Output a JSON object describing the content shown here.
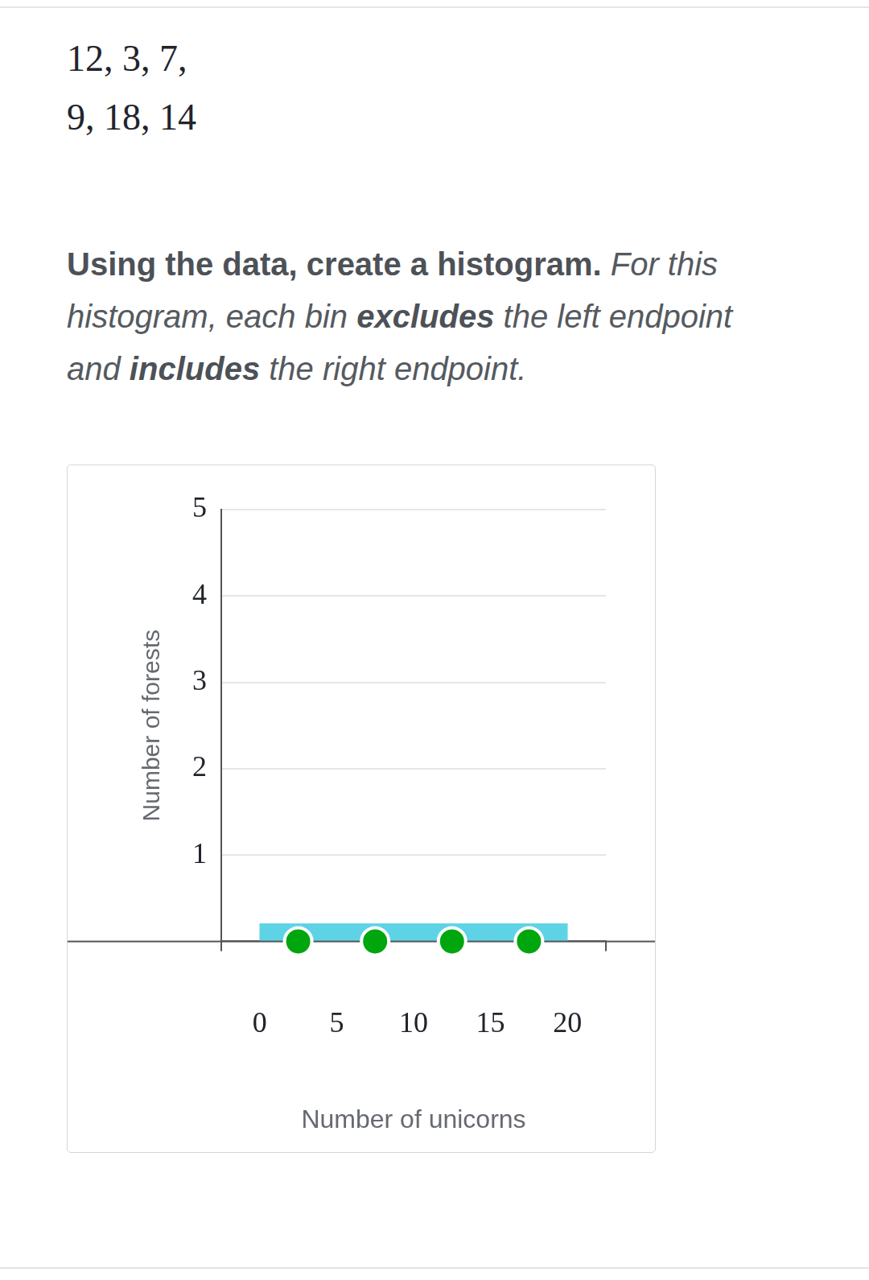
{
  "document": {
    "data_lines": [
      "12, 3, 7,",
      "9, 18, 14"
    ],
    "instruction": [
      {
        "text": "Using the data, create a histogram.",
        "style": "bold"
      },
      {
        "text": " For this histogram, each bin ",
        "style": "italic"
      },
      {
        "text": "excludes",
        "style": "bold-italic"
      },
      {
        "text": " the left endpoint and ",
        "style": "italic"
      },
      {
        "text": "includes",
        "style": "bold-italic"
      },
      {
        "text": " the right endpoint.",
        "style": "italic"
      }
    ]
  },
  "chart_data": {
    "type": "histogram",
    "bins": [
      0,
      5,
      10,
      15,
      20
    ],
    "values": [
      0,
      0,
      0,
      0
    ],
    "xlabel": "Number of unicorns",
    "ylabel": "Number of forests",
    "xlim": [
      -2.5,
      22.5
    ],
    "xticks": [
      0,
      5,
      10,
      15,
      20
    ],
    "ylim": [
      0,
      5
    ],
    "yticks": [
      1,
      2,
      3,
      4,
      5
    ],
    "grid": true,
    "color": "#5fd3e6",
    "marker": "circle"
  }
}
